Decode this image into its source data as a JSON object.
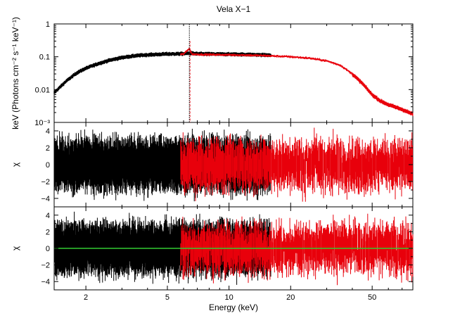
{
  "chart_data": [
    {
      "type": "line",
      "panel": "spectrum",
      "title": "Vela X−1",
      "xscale": "log",
      "yscale": "log",
      "xlim": [
        1.4,
        79
      ],
      "ylim": [
        0.001,
        1
      ],
      "ylabel": "keV (Photons cm⁻² s⁻¹ keV⁻¹)",
      "ytick_labels": [
        "1",
        "0.1",
        "0.01",
        "10⁻³"
      ],
      "ytick_values": [
        1,
        0.1,
        0.01,
        0.001
      ],
      "series": [
        {
          "color": "#000000",
          "x": [
            1.4,
            1.6,
            1.8,
            2.0,
            2.3,
            2.6,
            3.0,
            3.5,
            4.0,
            5.0,
            6.0,
            6.4,
            7.0,
            8.0,
            10.0,
            12.0,
            14.0,
            16.0
          ],
          "y": [
            0.008,
            0.018,
            0.032,
            0.045,
            0.062,
            0.078,
            0.095,
            0.108,
            0.115,
            0.122,
            0.124,
            0.13,
            0.124,
            0.122,
            0.12,
            0.118,
            0.115,
            0.112
          ]
        },
        {
          "color": "#e8000b",
          "x": [
            5.8,
            6.0,
            6.4,
            6.6,
            7.0,
            8.0,
            10.0,
            12.0,
            15.0,
            20.0,
            25.0,
            30.0,
            35.0,
            40.0,
            45.0,
            50.0,
            55.0,
            60.0,
            70.0,
            79.0
          ],
          "y": [
            0.118,
            0.12,
            0.18,
            0.12,
            0.118,
            0.116,
            0.114,
            0.112,
            0.108,
            0.1,
            0.09,
            0.075,
            0.055,
            0.03,
            0.015,
            0.007,
            0.0045,
            0.0035,
            0.0025,
            0.0018
          ]
        }
      ]
    },
    {
      "type": "line",
      "panel": "residuals-1",
      "xscale": "log",
      "xlim": [
        1.4,
        79
      ],
      "ylim": [
        -5,
        5
      ],
      "ylabel": "χ",
      "ytick_labels": [
        "4",
        "2",
        "0",
        "−2",
        "−4"
      ],
      "ytick_values": [
        4,
        2,
        0,
        -2,
        -4
      ],
      "series": [
        {
          "color": "#000000",
          "x_range": [
            1.4,
            16.0
          ],
          "spread": 2.5,
          "resolution": "dense"
        },
        {
          "color": "#e8000b",
          "x_range": [
            5.8,
            79.0
          ],
          "spread": 2.5,
          "resolution": "sparse"
        }
      ]
    },
    {
      "type": "line",
      "panel": "residuals-2",
      "xscale": "log",
      "xlim": [
        1.4,
        79
      ],
      "ylim": [
        -5,
        5
      ],
      "ylabel": "χ",
      "xlabel": "Energy (keV)",
      "ytick_labels": [
        "4",
        "2",
        "0",
        "−2",
        "−4"
      ],
      "ytick_values": [
        4,
        2,
        0,
        -2,
        -4
      ],
      "xtick_labels": [
        "2",
        "5",
        "10",
        "20",
        "50"
      ],
      "xtick_values": [
        2,
        5,
        10,
        20,
        50
      ],
      "reference_line": {
        "y": 0,
        "color": "#33cc33"
      },
      "series": [
        {
          "color": "#000000",
          "x_range": [
            1.4,
            16.0
          ],
          "spread": 2.5,
          "resolution": "dense"
        },
        {
          "color": "#e8000b",
          "x_range": [
            5.8,
            79.0
          ],
          "spread": 2.5,
          "resolution": "sparse"
        }
      ]
    }
  ]
}
